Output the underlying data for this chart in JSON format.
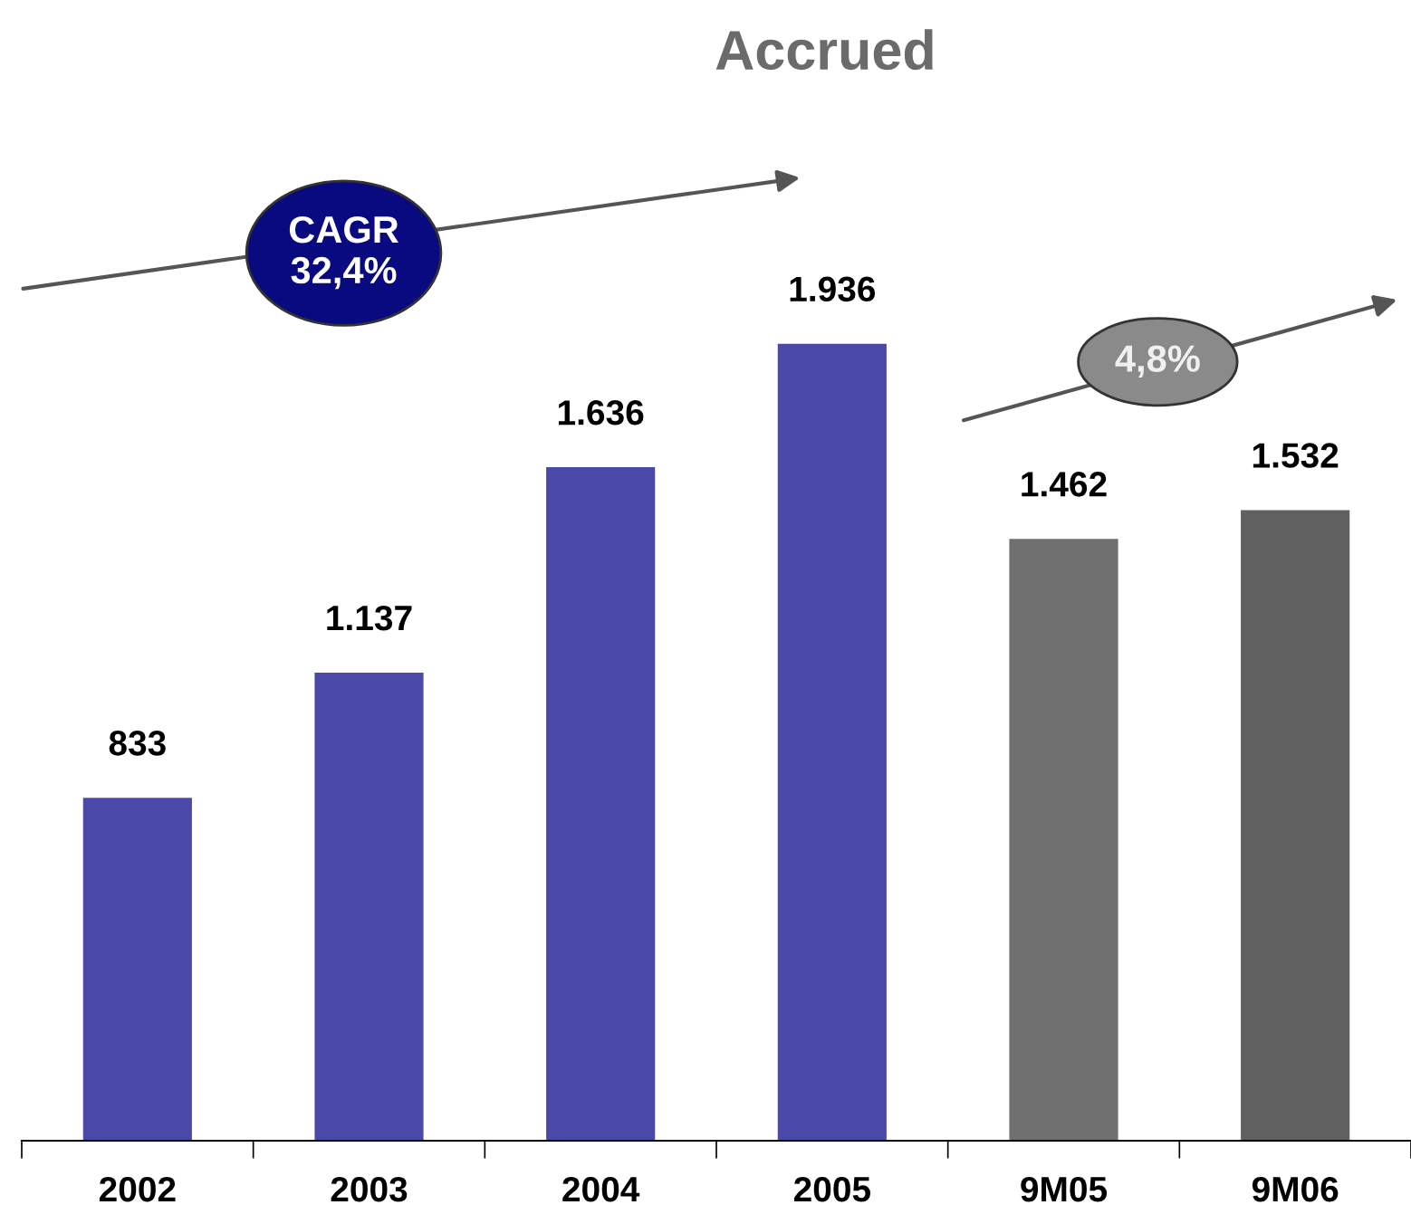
{
  "chart_data": {
    "type": "bar",
    "title": "Accrued",
    "categories": [
      "2002",
      "2003",
      "2004",
      "2005",
      "9M05",
      "9M06"
    ],
    "values": [
      833,
      1137,
      1636,
      1936,
      1462,
      1532
    ],
    "value_labels": [
      "833",
      "1.137",
      "1.636",
      "1.936",
      "1.462",
      "1.532"
    ],
    "colors": [
      "#4a48a8",
      "#4a48a8",
      "#4a48a8",
      "#4a48a8",
      "#707070",
      "#606060"
    ],
    "annotations": [
      "CAGR\n32,4%",
      "4,8%"
    ],
    "grid": false,
    "legend": false
  }
}
